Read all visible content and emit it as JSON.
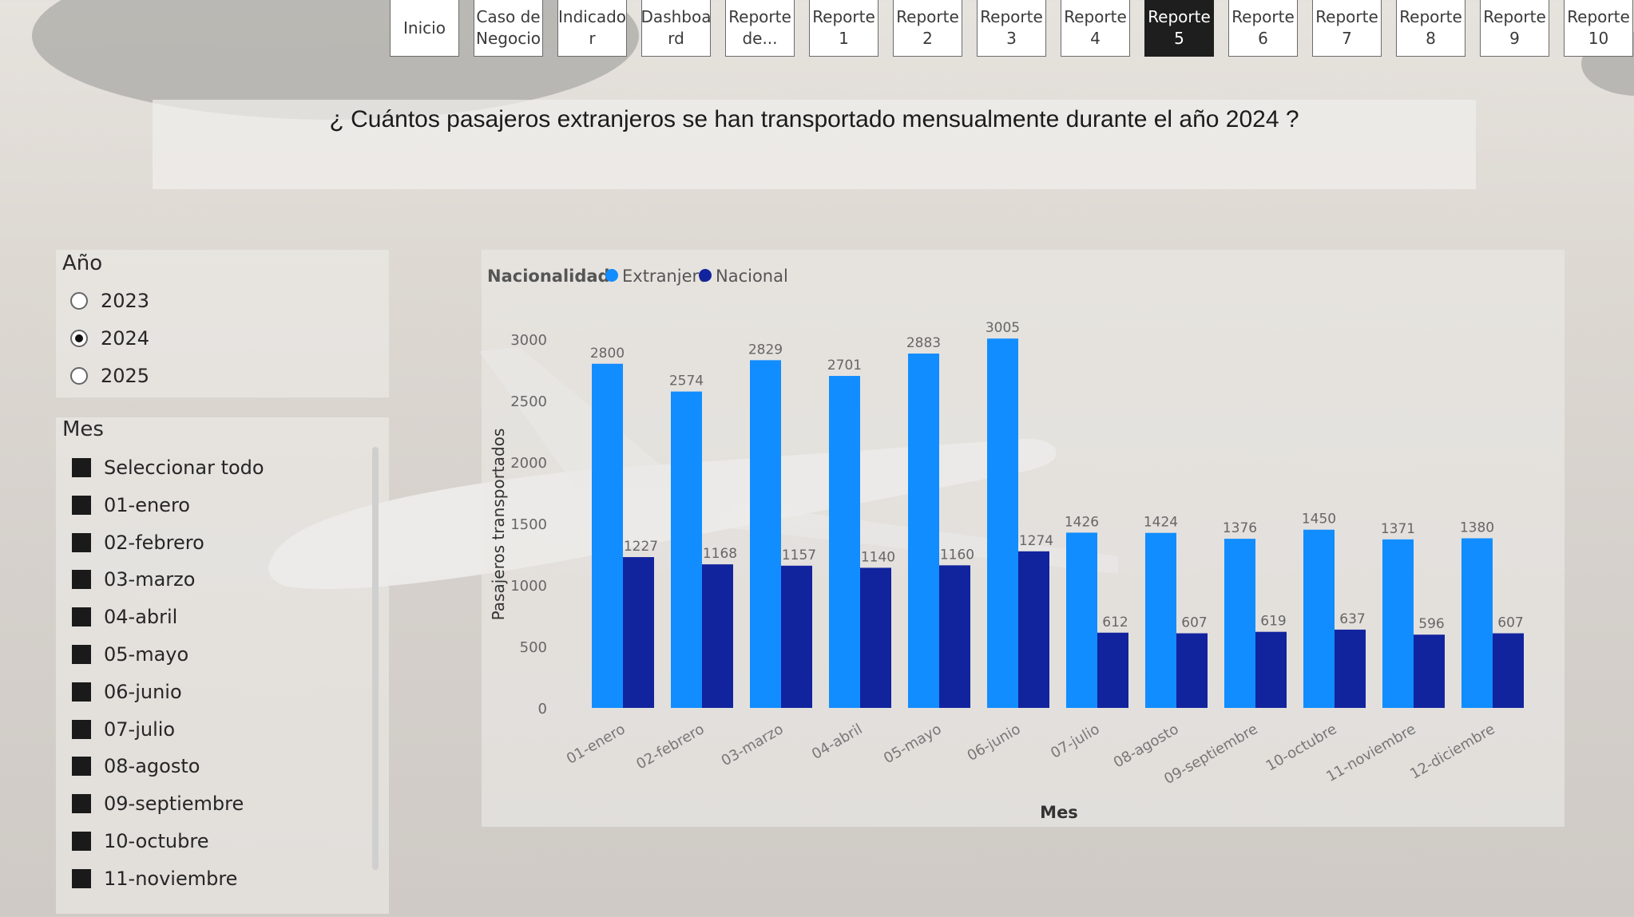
{
  "nav": {
    "buttons": [
      {
        "label": "Inicio"
      },
      {
        "label": "Caso de\nNegocio"
      },
      {
        "label": "Indicado\nr"
      },
      {
        "label": "Dashboa\nrd"
      },
      {
        "label": "Reporte\nde..."
      },
      {
        "label": "Reporte\n1"
      },
      {
        "label": "Reporte\n2"
      },
      {
        "label": "Reporte\n3"
      },
      {
        "label": "Reporte\n4"
      },
      {
        "label": "Reporte\n5",
        "active": true
      },
      {
        "label": "Reporte\n6"
      },
      {
        "label": "Reporte\n7"
      },
      {
        "label": "Reporte\n8"
      },
      {
        "label": "Reporte\n9"
      },
      {
        "label": "Reporte\n10"
      }
    ]
  },
  "header": {
    "title": "¿ Cuántos pasajeros extranjeros se han transportado mensualmente durante el año 2024 ?"
  },
  "year_slicer": {
    "title": "Año",
    "options": [
      {
        "label": "2023",
        "selected": false
      },
      {
        "label": "2024",
        "selected": true
      },
      {
        "label": "2025",
        "selected": false
      }
    ]
  },
  "month_slicer": {
    "title": "Mes",
    "items": [
      "Seleccionar todo",
      "01-enero",
      "02-febrero",
      "03-marzo",
      "04-abril",
      "05-mayo",
      "06-junio",
      "07-julio",
      "08-agosto",
      "09-septiembre",
      "10-octubre",
      "11-noviembre"
    ]
  },
  "chart_data": {
    "type": "bar",
    "xlabel": "Mes",
    "ylabel": "Pasajeros transportados",
    "ylim": [
      0,
      3000
    ],
    "yticks": [
      "0",
      "500",
      "1000",
      "1500",
      "2000",
      "2500",
      "3000"
    ],
    "legend_title": "Nacionalidad",
    "categories": [
      "01-enero",
      "02-febrero",
      "03-marzo",
      "04-abril",
      "05-mayo",
      "06-junio",
      "07-julio",
      "08-agosto",
      "09-septiembre",
      "10-octubre",
      "11-noviembre",
      "12-diciembre"
    ],
    "series": [
      {
        "name": "Extranjero",
        "color": "#118dff",
        "values": [
          2800,
          2574,
          2829,
          2701,
          2883,
          3005,
          1426,
          1424,
          1376,
          1450,
          1371,
          1380
        ]
      },
      {
        "name": "Nacional",
        "color": "#12239e",
        "values": [
          1227,
          1168,
          1157,
          1140,
          1160,
          1274,
          612,
          607,
          619,
          637,
          596,
          607
        ]
      }
    ]
  }
}
